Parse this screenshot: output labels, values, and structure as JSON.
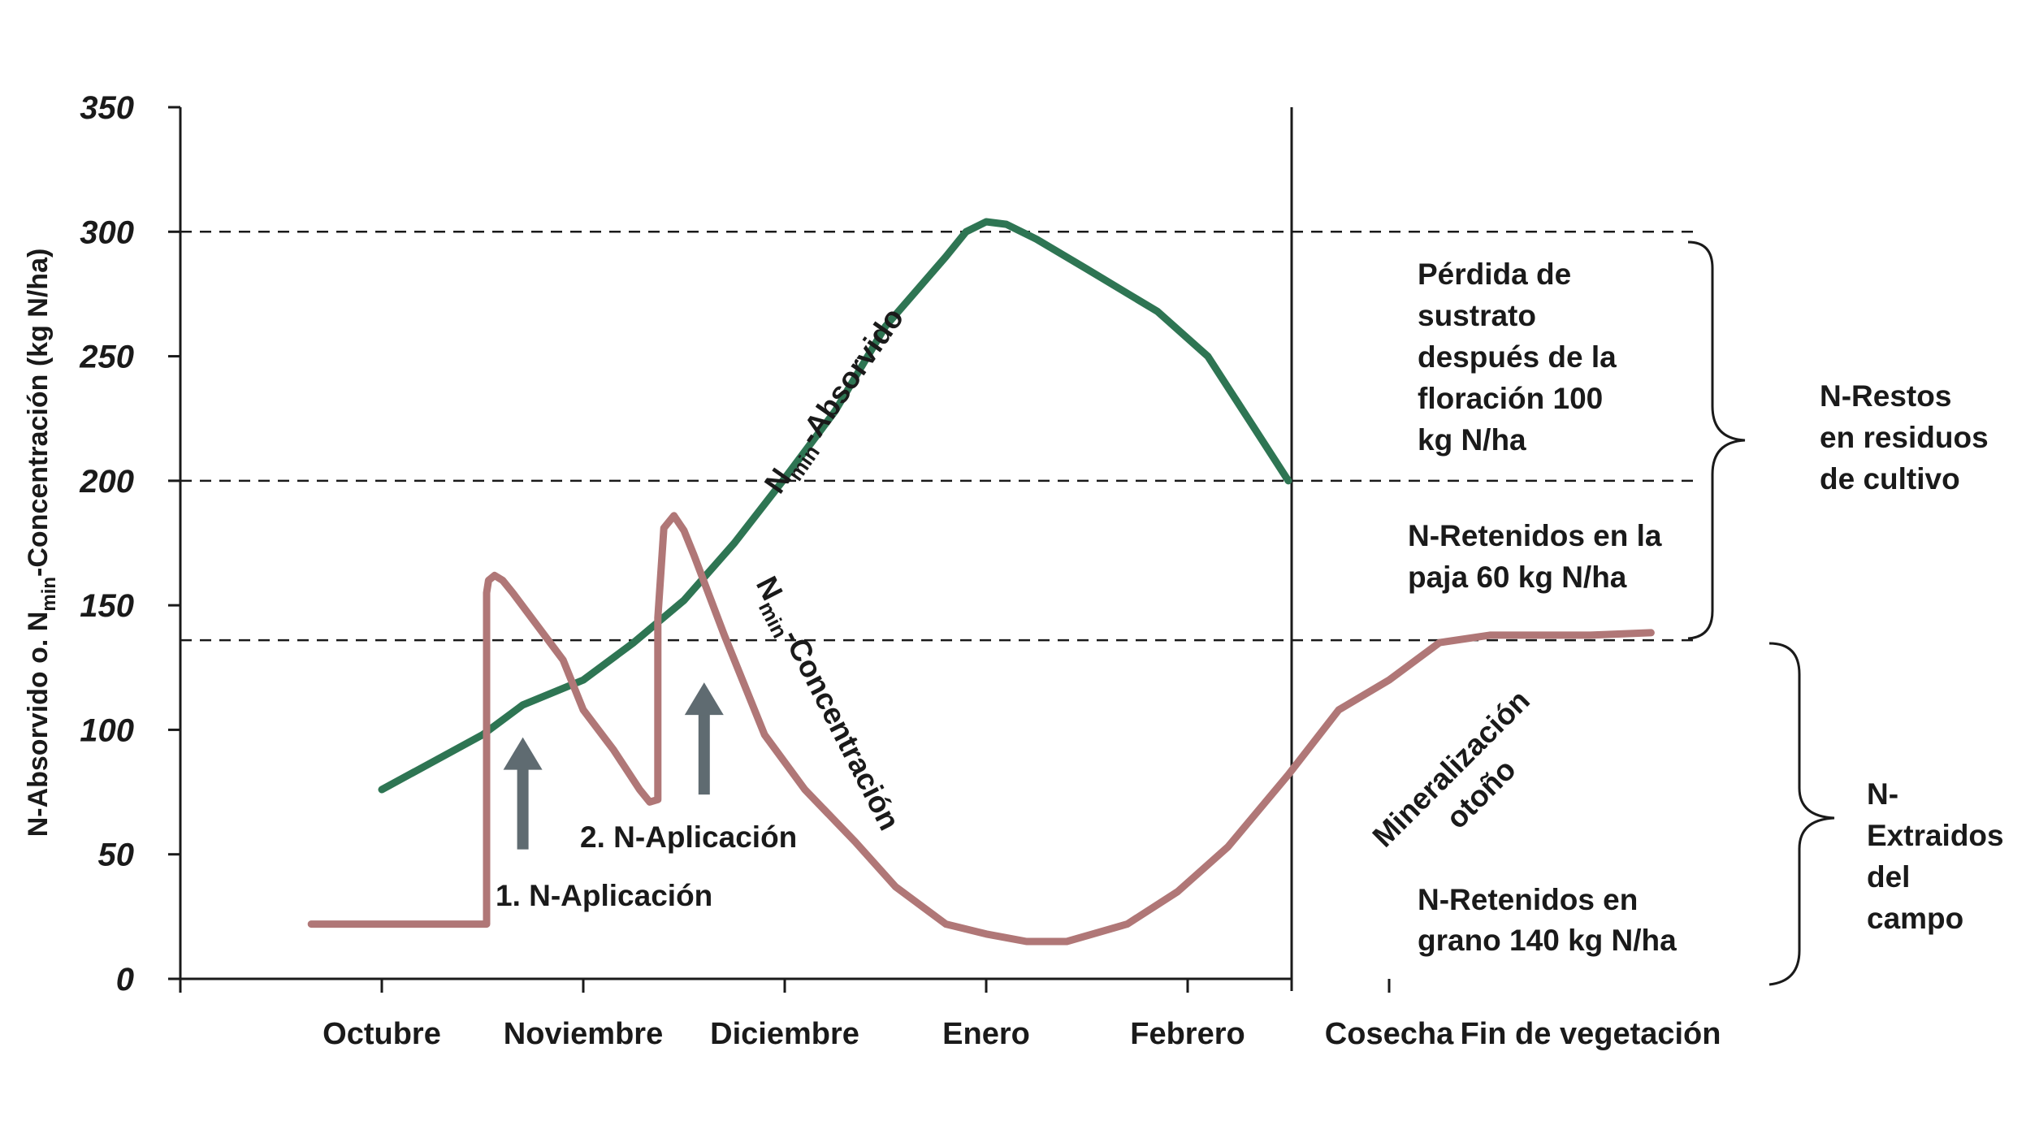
{
  "chart_data": {
    "type": "line",
    "ylabel": "N-Absorvido o. N",
    "ylabel_sub": "min",
    "ylabel_rest": "-Concentración (kg N/ha)",
    "ylim": [
      0,
      350
    ],
    "yticks": [
      "0",
      "50",
      "100",
      "150",
      "200",
      "250",
      "300",
      "350"
    ],
    "categories": [
      "Octubre",
      "Noviembre",
      "Diciembre",
      "Enero",
      "Febrero",
      "Cosecha",
      "Fin de vegetación"
    ],
    "reference_lines": [
      300,
      200,
      136
    ],
    "series": [
      {
        "name": "N-Absorvido",
        "label_main": "N",
        "label_sub": "min",
        "label_rest": "-Absorvido",
        "color": "#2e7553",
        "x": [
          0.0,
          0.25,
          0.5,
          0.7,
          1.0,
          1.25,
          1.5,
          1.75,
          2.0,
          2.25,
          2.5,
          2.8,
          2.9,
          3.0,
          3.1,
          3.25,
          3.5,
          3.85,
          4.1,
          4.3,
          4.5
        ],
        "y": [
          76,
          87,
          98,
          110,
          120,
          135,
          152,
          175,
          201,
          228,
          262,
          290,
          300,
          304,
          303,
          297,
          285,
          268,
          250,
          225,
          200
        ]
      },
      {
        "name": "N-Concentración",
        "label_main": "N",
        "label_sub": "min",
        "label_rest": "-Concentración",
        "color": "#b07777",
        "x": [
          -0.35,
          0.52,
          0.52,
          0.53,
          0.56,
          0.6,
          0.65,
          0.9,
          1.0,
          1.15,
          1.28,
          1.33,
          1.37,
          1.37,
          1.4,
          1.45,
          1.5,
          1.55,
          1.7,
          1.9,
          2.1,
          2.35,
          2.55,
          2.8,
          3.0,
          3.2,
          3.4,
          3.7,
          3.95,
          4.2,
          4.5,
          4.75,
          5.0,
          5.25,
          5.5,
          5.7,
          6.0,
          6.3
        ],
        "y": [
          22,
          22,
          155,
          160,
          162,
          160,
          155,
          128,
          108,
          92,
          76,
          71,
          72,
          145,
          181,
          186,
          180,
          170,
          138,
          98,
          76,
          55,
          37,
          22,
          18,
          15,
          15,
          22,
          35,
          53,
          82,
          108,
          120,
          135,
          138,
          138,
          138,
          139
        ]
      }
    ],
    "annotations": {
      "app1": "1. N-Aplicación",
      "app2": "2. N-Aplicación",
      "mineralization_1": "Mineralización",
      "mineralization_2": "otoño",
      "loss": [
        "Pérdida de",
        "sustrato",
        "después de la",
        "floración 100",
        "kg N/ha"
      ],
      "straw": [
        "N-Retenidos en la",
        "paja 60 kg N/ha"
      ],
      "grain": [
        "N-Retenidos en",
        "grano 140 kg N/ha"
      ],
      "restos": [
        "N-Restos",
        "en residuos",
        "de cultivo"
      ],
      "extraidos": [
        "N-",
        "Extraidos",
        "del",
        "campo"
      ]
    },
    "arrows": [
      {
        "x": 0.7,
        "y_from": 52,
        "y_to": 97
      },
      {
        "x": 1.6,
        "y_from": 74,
        "y_to": 119
      }
    ],
    "colors": {
      "absorbed": "#2e7553",
      "concentration": "#b07777",
      "arrow": "#5f6b71",
      "axis": "#1a1a1a"
    }
  }
}
